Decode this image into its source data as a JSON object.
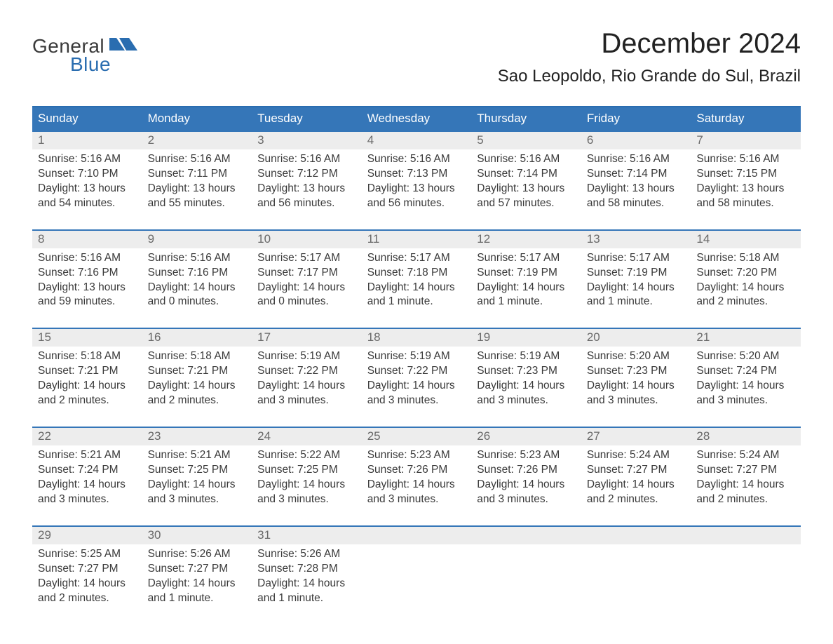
{
  "logo": {
    "top": "General",
    "bottom": "Blue",
    "icon_color": "#2a6db0"
  },
  "title": "December 2024",
  "location": "Sao Leopoldo, Rio Grande do Sul, Brazil",
  "colors": {
    "header_bg": "#3576b8",
    "header_border": "#2a6db0",
    "daynum_bg": "#ededed",
    "text": "#3a3a3a",
    "daynum_text": "#6a6a6a",
    "logo_blue": "#2a6db0"
  },
  "typography": {
    "title_fontsize": 40,
    "location_fontsize": 24,
    "header_fontsize": 17,
    "daynum_fontsize": 17,
    "body_fontsize": 15.5
  },
  "day_headers": [
    "Sunday",
    "Monday",
    "Tuesday",
    "Wednesday",
    "Thursday",
    "Friday",
    "Saturday"
  ],
  "weeks": [
    [
      {
        "n": "1",
        "sr": "Sunrise: 5:16 AM",
        "ss": "Sunset: 7:10 PM",
        "d1": "Daylight: 13 hours",
        "d2": "and 54 minutes."
      },
      {
        "n": "2",
        "sr": "Sunrise: 5:16 AM",
        "ss": "Sunset: 7:11 PM",
        "d1": "Daylight: 13 hours",
        "d2": "and 55 minutes."
      },
      {
        "n": "3",
        "sr": "Sunrise: 5:16 AM",
        "ss": "Sunset: 7:12 PM",
        "d1": "Daylight: 13 hours",
        "d2": "and 56 minutes."
      },
      {
        "n": "4",
        "sr": "Sunrise: 5:16 AM",
        "ss": "Sunset: 7:13 PM",
        "d1": "Daylight: 13 hours",
        "d2": "and 56 minutes."
      },
      {
        "n": "5",
        "sr": "Sunrise: 5:16 AM",
        "ss": "Sunset: 7:14 PM",
        "d1": "Daylight: 13 hours",
        "d2": "and 57 minutes."
      },
      {
        "n": "6",
        "sr": "Sunrise: 5:16 AM",
        "ss": "Sunset: 7:14 PM",
        "d1": "Daylight: 13 hours",
        "d2": "and 58 minutes."
      },
      {
        "n": "7",
        "sr": "Sunrise: 5:16 AM",
        "ss": "Sunset: 7:15 PM",
        "d1": "Daylight: 13 hours",
        "d2": "and 58 minutes."
      }
    ],
    [
      {
        "n": "8",
        "sr": "Sunrise: 5:16 AM",
        "ss": "Sunset: 7:16 PM",
        "d1": "Daylight: 13 hours",
        "d2": "and 59 minutes."
      },
      {
        "n": "9",
        "sr": "Sunrise: 5:16 AM",
        "ss": "Sunset: 7:16 PM",
        "d1": "Daylight: 14 hours",
        "d2": "and 0 minutes."
      },
      {
        "n": "10",
        "sr": "Sunrise: 5:17 AM",
        "ss": "Sunset: 7:17 PM",
        "d1": "Daylight: 14 hours",
        "d2": "and 0 minutes."
      },
      {
        "n": "11",
        "sr": "Sunrise: 5:17 AM",
        "ss": "Sunset: 7:18 PM",
        "d1": "Daylight: 14 hours",
        "d2": "and 1 minute."
      },
      {
        "n": "12",
        "sr": "Sunrise: 5:17 AM",
        "ss": "Sunset: 7:19 PM",
        "d1": "Daylight: 14 hours",
        "d2": "and 1 minute."
      },
      {
        "n": "13",
        "sr": "Sunrise: 5:17 AM",
        "ss": "Sunset: 7:19 PM",
        "d1": "Daylight: 14 hours",
        "d2": "and 1 minute."
      },
      {
        "n": "14",
        "sr": "Sunrise: 5:18 AM",
        "ss": "Sunset: 7:20 PM",
        "d1": "Daylight: 14 hours",
        "d2": "and 2 minutes."
      }
    ],
    [
      {
        "n": "15",
        "sr": "Sunrise: 5:18 AM",
        "ss": "Sunset: 7:21 PM",
        "d1": "Daylight: 14 hours",
        "d2": "and 2 minutes."
      },
      {
        "n": "16",
        "sr": "Sunrise: 5:18 AM",
        "ss": "Sunset: 7:21 PM",
        "d1": "Daylight: 14 hours",
        "d2": "and 2 minutes."
      },
      {
        "n": "17",
        "sr": "Sunrise: 5:19 AM",
        "ss": "Sunset: 7:22 PM",
        "d1": "Daylight: 14 hours",
        "d2": "and 3 minutes."
      },
      {
        "n": "18",
        "sr": "Sunrise: 5:19 AM",
        "ss": "Sunset: 7:22 PM",
        "d1": "Daylight: 14 hours",
        "d2": "and 3 minutes."
      },
      {
        "n": "19",
        "sr": "Sunrise: 5:19 AM",
        "ss": "Sunset: 7:23 PM",
        "d1": "Daylight: 14 hours",
        "d2": "and 3 minutes."
      },
      {
        "n": "20",
        "sr": "Sunrise: 5:20 AM",
        "ss": "Sunset: 7:23 PM",
        "d1": "Daylight: 14 hours",
        "d2": "and 3 minutes."
      },
      {
        "n": "21",
        "sr": "Sunrise: 5:20 AM",
        "ss": "Sunset: 7:24 PM",
        "d1": "Daylight: 14 hours",
        "d2": "and 3 minutes."
      }
    ],
    [
      {
        "n": "22",
        "sr": "Sunrise: 5:21 AM",
        "ss": "Sunset: 7:24 PM",
        "d1": "Daylight: 14 hours",
        "d2": "and 3 minutes."
      },
      {
        "n": "23",
        "sr": "Sunrise: 5:21 AM",
        "ss": "Sunset: 7:25 PM",
        "d1": "Daylight: 14 hours",
        "d2": "and 3 minutes."
      },
      {
        "n": "24",
        "sr": "Sunrise: 5:22 AM",
        "ss": "Sunset: 7:25 PM",
        "d1": "Daylight: 14 hours",
        "d2": "and 3 minutes."
      },
      {
        "n": "25",
        "sr": "Sunrise: 5:23 AM",
        "ss": "Sunset: 7:26 PM",
        "d1": "Daylight: 14 hours",
        "d2": "and 3 minutes."
      },
      {
        "n": "26",
        "sr": "Sunrise: 5:23 AM",
        "ss": "Sunset: 7:26 PM",
        "d1": "Daylight: 14 hours",
        "d2": "and 3 minutes."
      },
      {
        "n": "27",
        "sr": "Sunrise: 5:24 AM",
        "ss": "Sunset: 7:27 PM",
        "d1": "Daylight: 14 hours",
        "d2": "and 2 minutes."
      },
      {
        "n": "28",
        "sr": "Sunrise: 5:24 AM",
        "ss": "Sunset: 7:27 PM",
        "d1": "Daylight: 14 hours",
        "d2": "and 2 minutes."
      }
    ],
    [
      {
        "n": "29",
        "sr": "Sunrise: 5:25 AM",
        "ss": "Sunset: 7:27 PM",
        "d1": "Daylight: 14 hours",
        "d2": "and 2 minutes."
      },
      {
        "n": "30",
        "sr": "Sunrise: 5:26 AM",
        "ss": "Sunset: 7:27 PM",
        "d1": "Daylight: 14 hours",
        "d2": "and 1 minute."
      },
      {
        "n": "31",
        "sr": "Sunrise: 5:26 AM",
        "ss": "Sunset: 7:28 PM",
        "d1": "Daylight: 14 hours",
        "d2": "and 1 minute."
      },
      null,
      null,
      null,
      null
    ]
  ]
}
